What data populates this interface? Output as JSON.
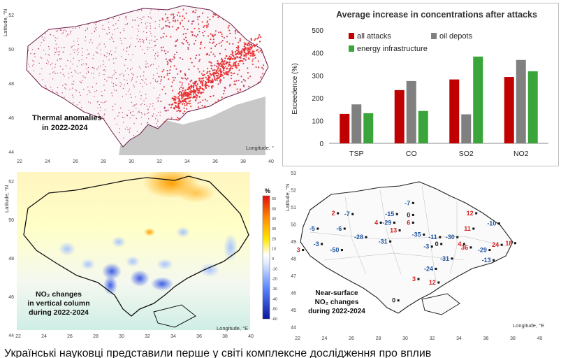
{
  "thermal_map": {
    "title_line1": "Thermal anomalies",
    "title_line2": "in 2022-2024",
    "y_axis_label": "Latitude, °N",
    "x_axis_label": "Longitude, °E",
    "lat_ticks": [
      "52",
      "50",
      "48",
      "46",
      "44"
    ],
    "lon_ticks": [
      "22",
      "24",
      "26",
      "28",
      "30",
      "32",
      "34",
      "36",
      "38",
      "40"
    ],
    "colors": {
      "land": "#ffffff",
      "sea": "#c8c8c8",
      "anomaly_dense": "#e8292a",
      "anomaly_sparse": "#b0305f"
    }
  },
  "chart_data": {
    "type": "bar",
    "title": "Average increase in concentrations after attacks",
    "ylabel": "Exceedence (%)",
    "xlabel": "",
    "categories": [
      "TSP",
      "CO",
      "SO2",
      "NO2"
    ],
    "ylim": [
      0,
      500
    ],
    "yticks": [
      "0",
      "100",
      "200",
      "300",
      "400",
      "500"
    ],
    "legend_position": "top-left",
    "series": [
      {
        "name": "all attacks",
        "color": "#c00000",
        "values": [
          130,
          235,
          282,
          293
        ]
      },
      {
        "name": "oil depots",
        "color": "#808080",
        "values": [
          172,
          275,
          128,
          368
        ]
      },
      {
        "name": "energy infrastructure",
        "color": "#3aa53a",
        "values": [
          133,
          143,
          383,
          318
        ]
      }
    ]
  },
  "no2_column_map": {
    "title_line1": "NO₂ changes",
    "title_line2": "in vertical column",
    "title_line3": "during 2022-2024",
    "y_axis_label": "Latitude, °N",
    "x_axis_label": "Longitude, °E",
    "lat_ticks": [
      "52",
      "50",
      "48",
      "46",
      "44"
    ],
    "lon_ticks": [
      "22",
      "24",
      "26",
      "28",
      "30",
      "32",
      "34",
      "36",
      "38",
      "40"
    ],
    "colorbar_unit": "%",
    "colorbar_ticks": [
      "60",
      "50",
      "40",
      "30",
      "20",
      "10",
      "0",
      "-10",
      "-20",
      "-30",
      "-40",
      "-50",
      "-60"
    ]
  },
  "surface_map": {
    "title_line1": "Near-surface",
    "title_line2": "NO₂ changes",
    "title_line3": "during 2022-2024",
    "y_axis_label": "Latitude, °N",
    "x_axis_label": "Longitude, °E",
    "lat_ticks": [
      "53",
      "52",
      "51",
      "50",
      "49",
      "48",
      "47",
      "46",
      "45",
      "44"
    ],
    "lon_ticks": [
      "22",
      "24",
      "26",
      "28",
      "30",
      "32",
      "34",
      "36",
      "38",
      "40"
    ],
    "stations": [
      {
        "label": "-7",
        "lon": 30.6,
        "lat": 51.35,
        "color": "#2255a0"
      },
      {
        "label": "2",
        "lon": 25.0,
        "lat": 50.75,
        "color": "#d42020"
      },
      {
        "label": "-7",
        "lon": 26.1,
        "lat": 50.7,
        "color": "#2255a0"
      },
      {
        "label": "-15",
        "lon": 29.4,
        "lat": 50.7,
        "color": "#2255a0"
      },
      {
        "label": "0",
        "lon": 30.6,
        "lat": 50.65,
        "color": "#222222"
      },
      {
        "label": "12",
        "lon": 35.3,
        "lat": 50.75,
        "color": "#d42020"
      },
      {
        "label": "4",
        "lon": 28.2,
        "lat": 50.2,
        "color": "#d42020"
      },
      {
        "label": "-29",
        "lon": 29.2,
        "lat": 50.2,
        "color": "#2255a0"
      },
      {
        "label": "6",
        "lon": 30.6,
        "lat": 50.2,
        "color": "#d42020"
      },
      {
        "label": "-10",
        "lon": 37.0,
        "lat": 50.15,
        "color": "#2255a0"
      },
      {
        "label": "-5",
        "lon": 23.5,
        "lat": 49.85,
        "color": "#2255a0"
      },
      {
        "label": "-6",
        "lon": 25.5,
        "lat": 49.85,
        "color": "#2255a0"
      },
      {
        "label": "13",
        "lon": 29.6,
        "lat": 49.75,
        "color": "#d42020"
      },
      {
        "label": "11",
        "lon": 35.1,
        "lat": 49.85,
        "color": "#d42020"
      },
      {
        "label": "-28",
        "lon": 27.1,
        "lat": 49.35,
        "color": "#2255a0"
      },
      {
        "label": "-31",
        "lon": 28.9,
        "lat": 49.1,
        "color": "#2255a0"
      },
      {
        "label": "-35",
        "lon": 31.4,
        "lat": 49.5,
        "color": "#2255a0"
      },
      {
        "label": "-11",
        "lon": 32.6,
        "lat": 49.35,
        "color": "#2255a0"
      },
      {
        "label": "-30",
        "lon": 33.9,
        "lat": 49.35,
        "color": "#2255a0"
      },
      {
        "label": "-3",
        "lon": 23.8,
        "lat": 48.95,
        "color": "#2255a0"
      },
      {
        "label": "-3",
        "lon": 32.0,
        "lat": 48.8,
        "color": "#2255a0"
      },
      {
        "label": "0",
        "lon": 32.7,
        "lat": 48.95,
        "color": "#222222"
      },
      {
        "label": "4",
        "lon": 34.4,
        "lat": 48.95,
        "color": "#d42020"
      },
      {
        "label": "18",
        "lon": 38.2,
        "lat": 49.0,
        "color": "#d42020"
      },
      {
        "label": "24",
        "lon": 37.2,
        "lat": 48.9,
        "color": "#d42020"
      },
      {
        "label": "36",
        "lon": 34.9,
        "lat": 48.75,
        "color": "#d42020"
      },
      {
        "label": "-29",
        "lon": 36.3,
        "lat": 48.6,
        "color": "#2255a0"
      },
      {
        "label": "-50",
        "lon": 25.3,
        "lat": 48.6,
        "color": "#2255a0"
      },
      {
        "label": "3",
        "lon": 22.4,
        "lat": 48.6,
        "color": "#d42020"
      },
      {
        "label": "-31",
        "lon": 33.5,
        "lat": 48.1,
        "color": "#2255a0"
      },
      {
        "label": "-13",
        "lon": 36.6,
        "lat": 48.0,
        "color": "#2255a0"
      },
      {
        "label": "-24",
        "lon": 32.3,
        "lat": 47.5,
        "color": "#2255a0"
      },
      {
        "label": "3",
        "lon": 31.0,
        "lat": 46.9,
        "color": "#d42020"
      },
      {
        "label": "12",
        "lon": 32.5,
        "lat": 46.7,
        "color": "#d42020"
      },
      {
        "label": "0",
        "lon": 29.5,
        "lat": 45.65,
        "color": "#222222"
      }
    ]
  },
  "caption": "Українські науковці представили перше у світі комплексне дослідження про вплив"
}
